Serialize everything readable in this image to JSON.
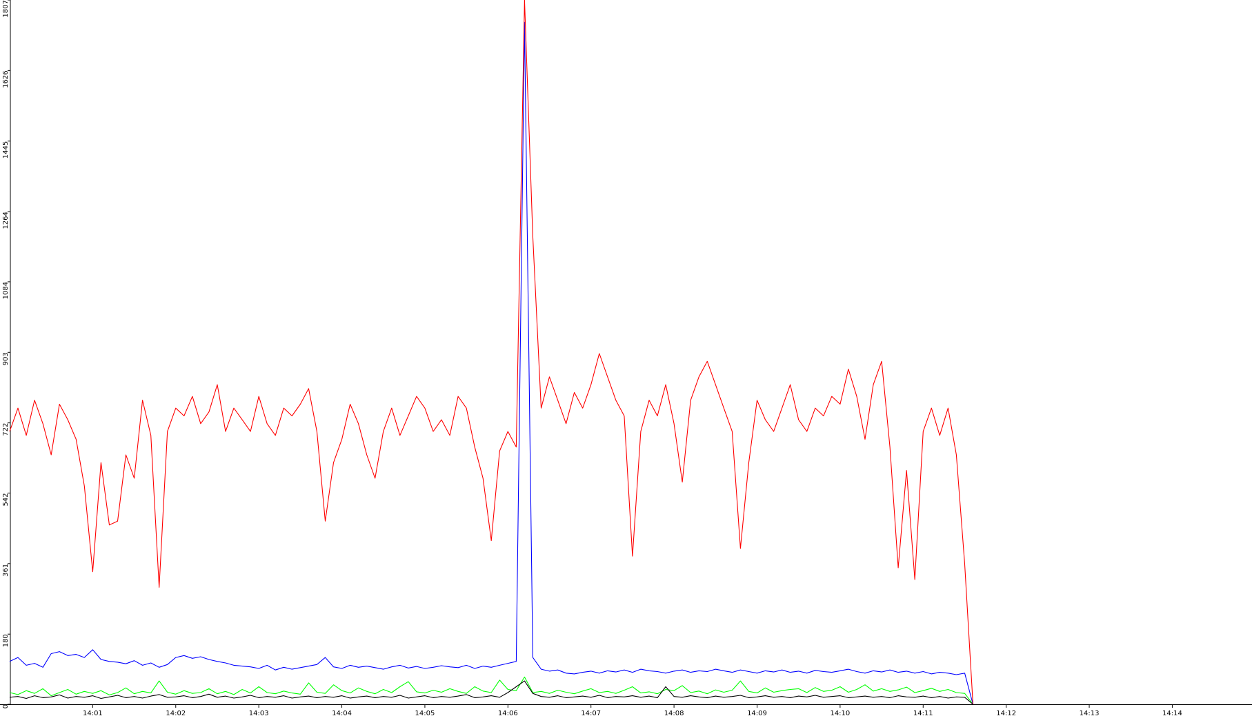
{
  "chart_data": {
    "type": "line",
    "xlim": [
      0,
      14.96
    ],
    "ylim": [
      0,
      1807
    ],
    "yticks": [
      0,
      180,
      361,
      542,
      722,
      903,
      1084,
      1264,
      1445,
      1626,
      1807
    ],
    "xticks": [
      {
        "value": 1,
        "label": "14:01"
      },
      {
        "value": 2,
        "label": "14:02"
      },
      {
        "value": 3,
        "label": "14:03"
      },
      {
        "value": 4,
        "label": "14:04"
      },
      {
        "value": 5,
        "label": "14:05"
      },
      {
        "value": 6,
        "label": "14:06"
      },
      {
        "value": 7,
        "label": "14:07"
      },
      {
        "value": 8,
        "label": "14:08"
      },
      {
        "value": 9,
        "label": "14:09"
      },
      {
        "value": 10,
        "label": "14:10"
      },
      {
        "value": 11,
        "label": "14:11"
      },
      {
        "value": 12,
        "label": "14:12"
      },
      {
        "value": 13,
        "label": "14:13"
      },
      {
        "value": 14,
        "label": "14:14"
      }
    ],
    "x": [
      0,
      0.1,
      0.2,
      0.3,
      0.4,
      0.5,
      0.6,
      0.7,
      0.8,
      0.9,
      1,
      1.1,
      1.2,
      1.3,
      1.4,
      1.5,
      1.6,
      1.7,
      1.8,
      1.9,
      2,
      2.1,
      2.2,
      2.3,
      2.4,
      2.5,
      2.6,
      2.7,
      2.8,
      2.9,
      3,
      3.1,
      3.2,
      3.3,
      3.4,
      3.5,
      3.6,
      3.7,
      3.8,
      3.9,
      4,
      4.1,
      4.2,
      4.3,
      4.4,
      4.5,
      4.6,
      4.7,
      4.8,
      4.9,
      5,
      5.1,
      5.2,
      5.3,
      5.4,
      5.5,
      5.6,
      5.7,
      5.8,
      5.9,
      6,
      6.1,
      6.2,
      6.3,
      6.4,
      6.5,
      6.6,
      6.7,
      6.8,
      6.9,
      7,
      7.1,
      7.2,
      7.3,
      7.4,
      7.5,
      7.6,
      7.7,
      7.8,
      7.9,
      8,
      8.1,
      8.2,
      8.3,
      8.4,
      8.5,
      8.6,
      8.7,
      8.8,
      8.9,
      9,
      9.1,
      9.2,
      9.3,
      9.4,
      9.5,
      9.6,
      9.7,
      9.8,
      9.9,
      10,
      10.1,
      10.2,
      10.3,
      10.4,
      10.5,
      10.6,
      10.7,
      10.8,
      10.9,
      11,
      11.1,
      11.2,
      11.3,
      11.4,
      11.5,
      11.6
    ],
    "series": [
      {
        "color": "#00ff00",
        "values": [
          30,
          25,
          35,
          28,
          40,
          22,
          30,
          38,
          26,
          33,
          28,
          35,
          24,
          30,
          42,
          27,
          33,
          29,
          60,
          31,
          26,
          35,
          28,
          30,
          40,
          27,
          33,
          25,
          38,
          29,
          45,
          30,
          27,
          34,
          29,
          26,
          55,
          31,
          28,
          50,
          35,
          29,
          42,
          33,
          27,
          38,
          30,
          45,
          58,
          32,
          29,
          36,
          31,
          40,
          33,
          28,
          45,
          34,
          30,
          62,
          38,
          35,
          70,
          30,
          33,
          28,
          36,
          31,
          27,
          34,
          40,
          30,
          33,
          28,
          36,
          45,
          29,
          32,
          27,
          38,
          35,
          48,
          30,
          34,
          27,
          37,
          31,
          36,
          60,
          33,
          29,
          42,
          31,
          35,
          38,
          40,
          30,
          43,
          33,
          36,
          45,
          31,
          38,
          50,
          34,
          40,
          33,
          37,
          44,
          30,
          35,
          41,
          33,
          38,
          30,
          28,
          0
        ]
      },
      {
        "color": "#000000",
        "values": [
          18,
          20,
          15,
          22,
          17,
          19,
          24,
          16,
          20,
          18,
          22,
          15,
          19,
          23,
          17,
          20,
          16,
          21,
          25,
          18,
          19,
          22,
          17,
          20,
          26,
          18,
          21,
          16,
          19,
          23,
          17,
          20,
          18,
          22,
          16,
          19,
          21,
          17,
          20,
          18,
          22,
          16,
          19,
          21,
          17,
          20,
          18,
          23,
          16,
          19,
          22,
          17,
          20,
          18,
          21,
          25,
          17,
          19,
          22,
          18,
          30,
          45,
          60,
          28,
          20,
          18,
          22,
          17,
          19,
          21,
          18,
          23,
          17,
          20,
          19,
          22,
          18,
          21,
          17,
          45,
          20,
          18,
          22,
          19,
          17,
          21,
          18,
          20,
          23,
          17,
          19,
          22,
          18,
          20,
          17,
          21,
          19,
          23,
          18,
          20,
          22,
          17,
          19,
          21,
          18,
          20,
          17,
          22,
          19,
          18,
          21,
          17,
          20,
          16,
          19,
          18,
          0
        ]
      },
      {
        "color": "#0000ff",
        "values": [
          110,
          120,
          100,
          105,
          95,
          130,
          135,
          125,
          128,
          120,
          140,
          115,
          110,
          108,
          104,
          112,
          100,
          106,
          95,
          102,
          120,
          125,
          118,
          122,
          115,
          110,
          106,
          100,
          98,
          96,
          92,
          100,
          88,
          95,
          90,
          94,
          98,
          102,
          120,
          96,
          92,
          100,
          95,
          98,
          94,
          90,
          96,
          100,
          93,
          97,
          92,
          95,
          99,
          96,
          94,
          100,
          92,
          98,
          95,
          100,
          105,
          110,
          1750,
          120,
          90,
          85,
          88,
          80,
          78,
          82,
          85,
          80,
          86,
          83,
          88,
          82,
          90,
          86,
          84,
          80,
          85,
          88,
          82,
          86,
          84,
          90,
          86,
          82,
          88,
          84,
          80,
          86,
          83,
          88,
          82,
          85,
          80,
          87,
          84,
          82,
          86,
          90,
          84,
          80,
          86,
          83,
          88,
          82,
          85,
          80,
          84,
          78,
          82,
          80,
          76,
          80,
          0
        ]
      },
      {
        "color": "#ff0000",
        "values": [
          700,
          760,
          690,
          780,
          720,
          640,
          770,
          730,
          680,
          560,
          340,
          620,
          460,
          470,
          640,
          580,
          780,
          690,
          300,
          700,
          760,
          740,
          790,
          720,
          750,
          820,
          700,
          760,
          730,
          700,
          790,
          720,
          690,
          760,
          740,
          770,
          810,
          700,
          470,
          620,
          680,
          770,
          720,
          640,
          580,
          700,
          760,
          690,
          740,
          790,
          760,
          700,
          730,
          690,
          790,
          760,
          660,
          580,
          420,
          650,
          700,
          660,
          1807,
          1200,
          760,
          840,
          780,
          720,
          800,
          760,
          820,
          900,
          840,
          780,
          740,
          380,
          700,
          780,
          740,
          820,
          720,
          570,
          780,
          840,
          880,
          820,
          760,
          700,
          400,
          620,
          780,
          730,
          700,
          760,
          820,
          730,
          700,
          760,
          740,
          790,
          770,
          860,
          790,
          680,
          820,
          880,
          660,
          350,
          600,
          320,
          700,
          760,
          690,
          760,
          640,
          360,
          0
        ]
      }
    ]
  }
}
